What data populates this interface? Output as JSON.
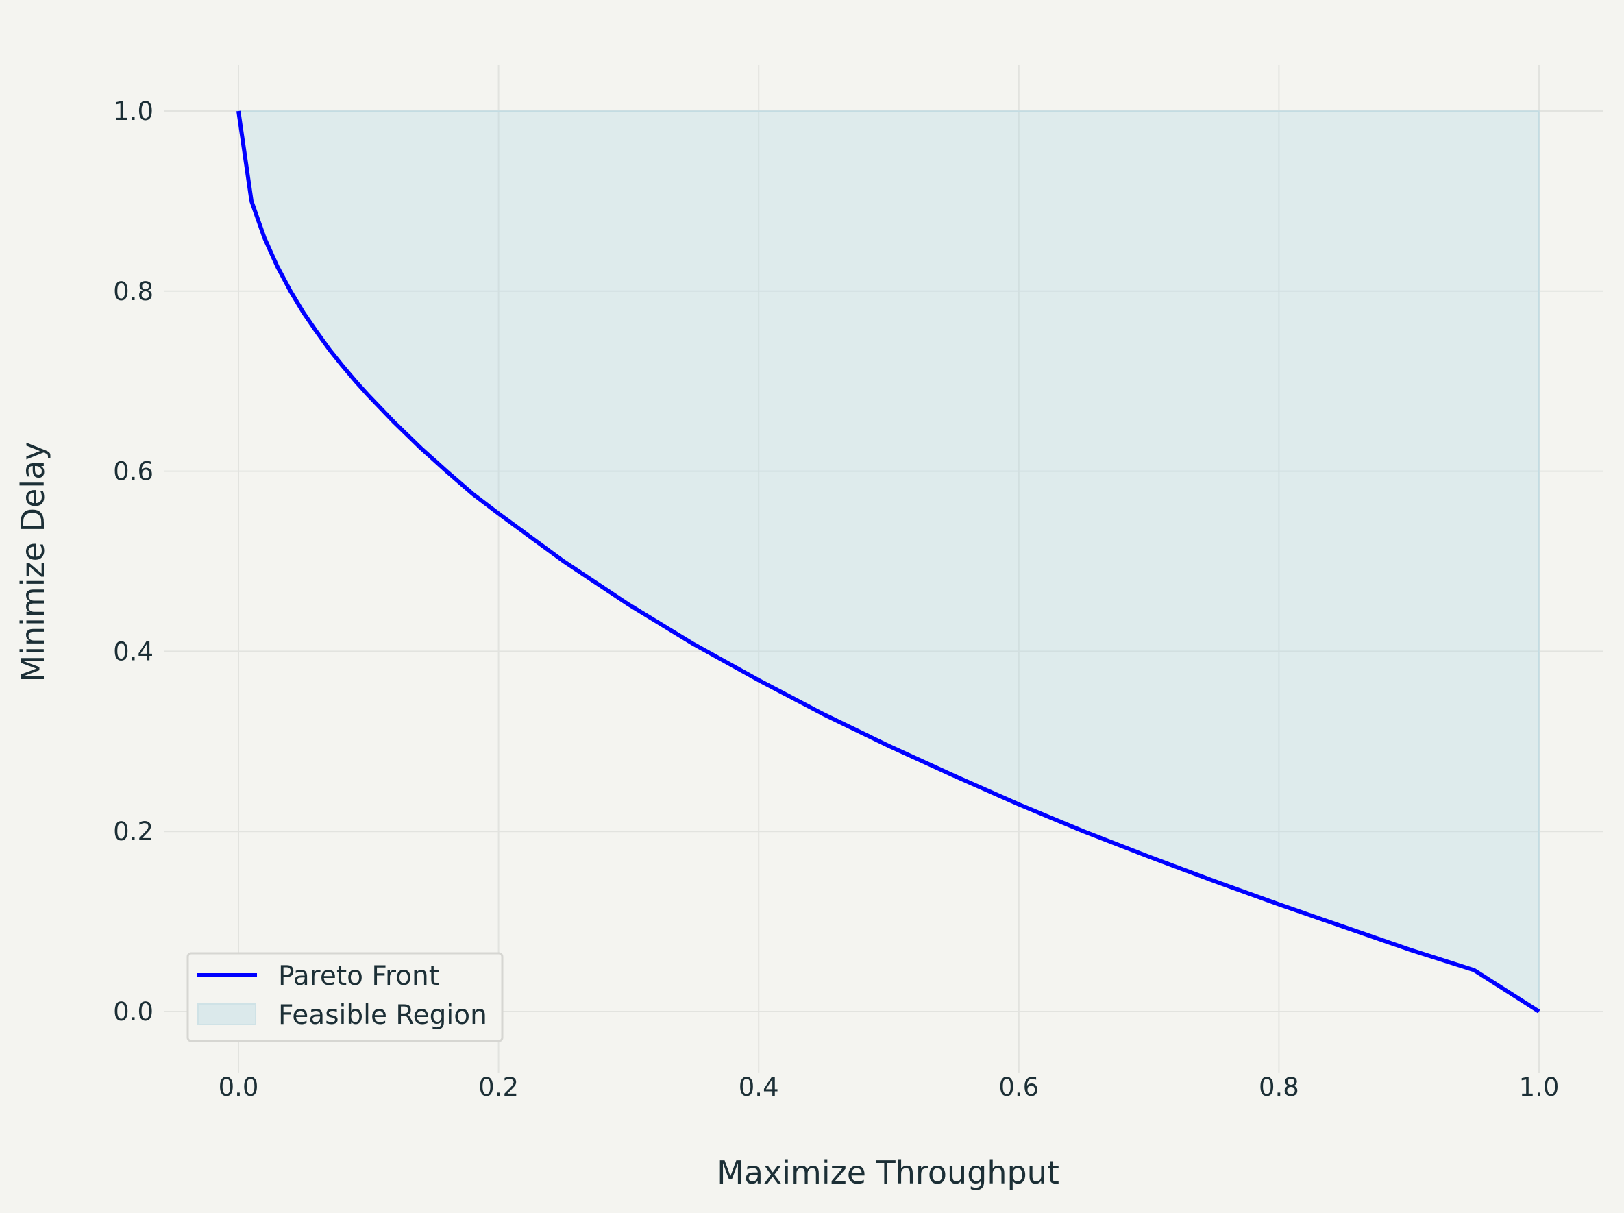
{
  "chart_data": {
    "type": "area",
    "title": "",
    "xlabel": "Maximize Throughput",
    "ylabel": "Minimize Delay",
    "xlim": [
      -0.06,
      1.05
    ],
    "ylim": [
      -0.05,
      1.05
    ],
    "xticks": [
      0.0,
      0.2,
      0.4,
      0.6,
      0.8,
      1.0
    ],
    "xtick_labels": [
      "0.0",
      "0.2",
      "0.4",
      "0.6",
      "0.8",
      "1.0"
    ],
    "yticks": [
      0.0,
      0.2,
      0.4,
      0.6,
      0.8,
      1.0
    ],
    "ytick_labels": [
      "0.0",
      "0.2",
      "0.4",
      "0.6",
      "0.8",
      "1.0"
    ],
    "grid": true,
    "legend_position": "bottom-left",
    "series": [
      {
        "name": "Pareto Front",
        "kind": "line",
        "color": "#0000ff",
        "x": [
          0.0,
          0.01,
          0.02,
          0.03,
          0.04,
          0.05,
          0.06,
          0.07,
          0.08,
          0.09,
          0.1,
          0.12,
          0.14,
          0.16,
          0.18,
          0.2,
          0.25,
          0.3,
          0.35,
          0.4,
          0.45,
          0.5,
          0.55,
          0.6,
          0.65,
          0.7,
          0.75,
          0.8,
          0.85,
          0.9,
          0.95,
          1.0
        ],
        "y": [
          1.0,
          0.9,
          0.859,
          0.827,
          0.8,
          0.776,
          0.755,
          0.735,
          0.717,
          0.7,
          0.684,
          0.654,
          0.626,
          0.6,
          0.575,
          0.553,
          0.5,
          0.452,
          0.408,
          0.368,
          0.33,
          0.295,
          0.262,
          0.23,
          0.2,
          0.172,
          0.145,
          0.119,
          0.094,
          0.069,
          0.046,
          0.0
        ]
      },
      {
        "name": "Feasible Region",
        "kind": "area",
        "color": "#add8e6",
        "opacity": 0.3,
        "upper_y": 1.0,
        "lower": "Pareto Front"
      }
    ]
  }
}
